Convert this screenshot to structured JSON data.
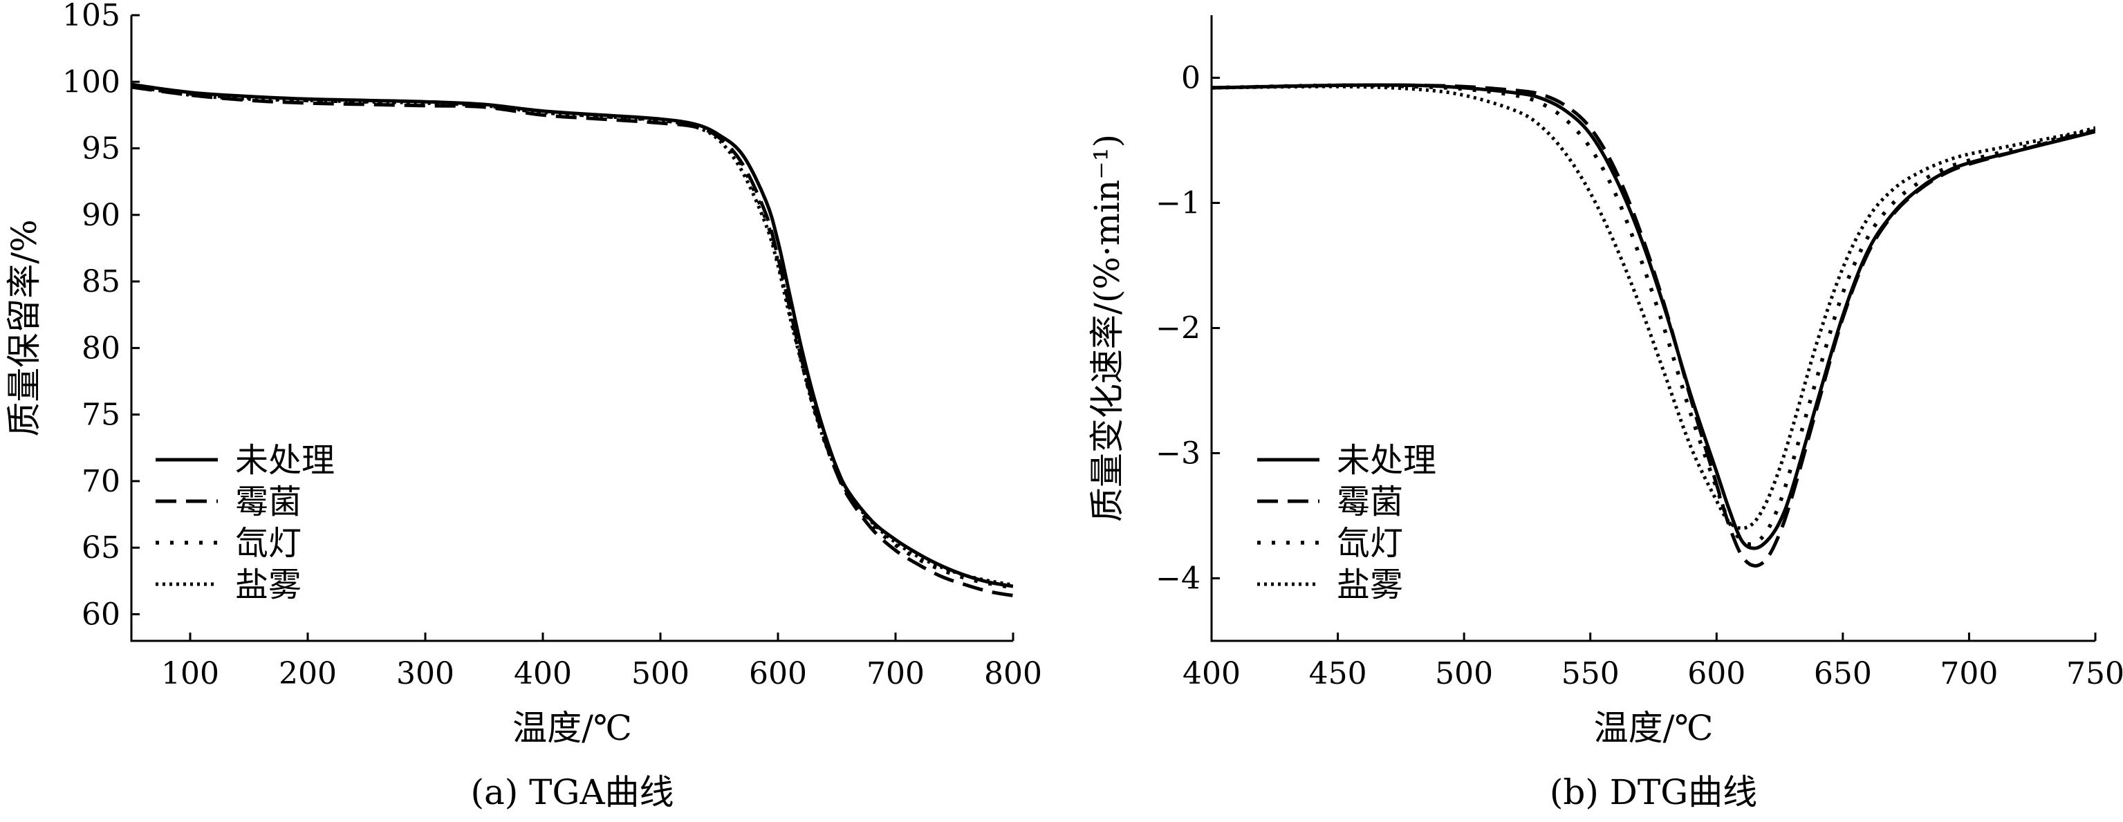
{
  "chart_data": [
    {
      "type": "line",
      "caption": "(a) TGA曲线",
      "xlabel": "温度/℃",
      "ylabel": "质量保留率/%",
      "xlim": [
        50,
        800
      ],
      "ylim": [
        58,
        105
      ],
      "xticks": [
        100,
        200,
        300,
        400,
        500,
        600,
        700,
        800
      ],
      "yticks": [
        60,
        65,
        70,
        75,
        80,
        85,
        90,
        95,
        100,
        105
      ],
      "grid": false,
      "legend": "bottom-left",
      "series": [
        {
          "name": "未处理",
          "style": "solid",
          "points": [
            [
              50,
              99.8
            ],
            [
              100,
              99.2
            ],
            [
              150,
              98.9
            ],
            [
              200,
              98.7
            ],
            [
              250,
              98.6
            ],
            [
              300,
              98.5
            ],
            [
              350,
              98.3
            ],
            [
              400,
              97.8
            ],
            [
              450,
              97.5
            ],
            [
              500,
              97.2
            ],
            [
              530,
              96.8
            ],
            [
              550,
              96.0
            ],
            [
              570,
              94.5
            ],
            [
              590,
              91.0
            ],
            [
              600,
              88.0
            ],
            [
              610,
              84.0
            ],
            [
              620,
              80.0
            ],
            [
              630,
              76.5
            ],
            [
              640,
              73.5
            ],
            [
              650,
              71.0
            ],
            [
              660,
              69.2
            ],
            [
              680,
              67.0
            ],
            [
              700,
              65.6
            ],
            [
              720,
              64.5
            ],
            [
              740,
              63.6
            ],
            [
              760,
              62.9
            ],
            [
              780,
              62.4
            ],
            [
              800,
              62.1
            ]
          ]
        },
        {
          "name": "霉菌",
          "style": "dash",
          "points": [
            [
              50,
              99.6
            ],
            [
              100,
              99.0
            ],
            [
              150,
              98.6
            ],
            [
              200,
              98.4
            ],
            [
              250,
              98.3
            ],
            [
              300,
              98.2
            ],
            [
              350,
              98.1
            ],
            [
              400,
              97.5
            ],
            [
              450,
              97.2
            ],
            [
              500,
              96.9
            ],
            [
              530,
              96.6
            ],
            [
              550,
              95.8
            ],
            [
              570,
              93.8
            ],
            [
              590,
              90.0
            ],
            [
              600,
              86.8
            ],
            [
              610,
              83.0
            ],
            [
              620,
              79.2
            ],
            [
              630,
              75.8
            ],
            [
              640,
              73.0
            ],
            [
              650,
              70.6
            ],
            [
              660,
              68.8
            ],
            [
              680,
              66.4
            ],
            [
              700,
              64.8
            ],
            [
              720,
              63.7
            ],
            [
              740,
              62.8
            ],
            [
              760,
              62.2
            ],
            [
              780,
              61.7
            ],
            [
              800,
              61.4
            ]
          ]
        },
        {
          "name": "氙灯",
          "style": "dot",
          "points": [
            [
              50,
              99.7
            ],
            [
              100,
              99.1
            ],
            [
              150,
              98.8
            ],
            [
              200,
              98.6
            ],
            [
              250,
              98.5
            ],
            [
              300,
              98.4
            ],
            [
              350,
              98.2
            ],
            [
              400,
              97.7
            ],
            [
              450,
              97.4
            ],
            [
              500,
              97.1
            ],
            [
              530,
              96.7
            ],
            [
              550,
              95.8
            ],
            [
              570,
              93.6
            ],
            [
              590,
              89.6
            ],
            [
              600,
              86.5
            ],
            [
              610,
              82.6
            ],
            [
              620,
              79.0
            ],
            [
              630,
              75.6
            ],
            [
              640,
              72.9
            ],
            [
              650,
              70.7
            ],
            [
              660,
              68.9
            ],
            [
              680,
              66.7
            ],
            [
              700,
              65.2
            ],
            [
              720,
              64.1
            ],
            [
              740,
              63.3
            ],
            [
              760,
              62.7
            ],
            [
              780,
              62.3
            ],
            [
              800,
              62.0
            ]
          ]
        },
        {
          "name": "盐雾",
          "style": "dense-dot",
          "points": [
            [
              50,
              99.7
            ],
            [
              100,
              99.0
            ],
            [
              150,
              98.7
            ],
            [
              200,
              98.6
            ],
            [
              250,
              98.5
            ],
            [
              300,
              98.4
            ],
            [
              350,
              98.2
            ],
            [
              400,
              97.7
            ],
            [
              450,
              97.4
            ],
            [
              500,
              97.1
            ],
            [
              530,
              96.6
            ],
            [
              550,
              95.6
            ],
            [
              570,
              93.2
            ],
            [
              590,
              89.2
            ],
            [
              600,
              86.2
            ],
            [
              610,
              82.4
            ],
            [
              620,
              78.9
            ],
            [
              630,
              75.6
            ],
            [
              640,
              72.9
            ],
            [
              650,
              70.8
            ],
            [
              660,
              69.0
            ],
            [
              680,
              66.9
            ],
            [
              700,
              65.4
            ],
            [
              720,
              64.3
            ],
            [
              740,
              63.5
            ],
            [
              760,
              62.9
            ],
            [
              780,
              62.5
            ],
            [
              800,
              62.2
            ]
          ]
        }
      ]
    },
    {
      "type": "line",
      "caption": "(b) DTG曲线",
      "xlabel": "温度/℃",
      "ylabel": "质量变化速率/(%·min⁻¹)",
      "xlim": [
        400,
        750
      ],
      "ylim": [
        -4.5,
        0.5
      ],
      "xticks": [
        400,
        450,
        500,
        550,
        600,
        650,
        700,
        750
      ],
      "yticks": [
        0,
        -1,
        -2,
        -3,
        -4
      ],
      "ytick_labels": [
        "0",
        "−1",
        "−2",
        "−3",
        "−4"
      ],
      "grid": false,
      "legend": "bottom-left",
      "series": [
        {
          "name": "未处理",
          "style": "solid",
          "points": [
            [
              400,
              -0.08
            ],
            [
              450,
              -0.06
            ],
            [
              480,
              -0.06
            ],
            [
              500,
              -0.08
            ],
            [
              520,
              -0.12
            ],
            [
              530,
              -0.16
            ],
            [
              540,
              -0.26
            ],
            [
              550,
              -0.45
            ],
            [
              560,
              -0.8
            ],
            [
              570,
              -1.28
            ],
            [
              580,
              -1.88
            ],
            [
              590,
              -2.55
            ],
            [
              600,
              -3.15
            ],
            [
              605,
              -3.45
            ],
            [
              610,
              -3.7
            ],
            [
              615,
              -3.76
            ],
            [
              620,
              -3.7
            ],
            [
              625,
              -3.55
            ],
            [
              630,
              -3.28
            ],
            [
              640,
              -2.58
            ],
            [
              650,
              -1.9
            ],
            [
              660,
              -1.38
            ],
            [
              670,
              -1.08
            ],
            [
              680,
              -0.89
            ],
            [
              690,
              -0.76
            ],
            [
              700,
              -0.68
            ],
            [
              720,
              -0.58
            ],
            [
              740,
              -0.48
            ],
            [
              750,
              -0.43
            ]
          ]
        },
        {
          "name": "霉菌",
          "style": "dash",
          "points": [
            [
              400,
              -0.08
            ],
            [
              450,
              -0.06
            ],
            [
              480,
              -0.06
            ],
            [
              500,
              -0.07
            ],
            [
              520,
              -0.1
            ],
            [
              530,
              -0.13
            ],
            [
              540,
              -0.22
            ],
            [
              550,
              -0.4
            ],
            [
              560,
              -0.74
            ],
            [
              570,
              -1.24
            ],
            [
              580,
              -1.86
            ],
            [
              590,
              -2.58
            ],
            [
              600,
              -3.25
            ],
            [
              605,
              -3.58
            ],
            [
              610,
              -3.82
            ],
            [
              615,
              -3.9
            ],
            [
              620,
              -3.84
            ],
            [
              625,
              -3.64
            ],
            [
              630,
              -3.34
            ],
            [
              640,
              -2.62
            ],
            [
              650,
              -1.92
            ],
            [
              660,
              -1.4
            ],
            [
              670,
              -1.09
            ],
            [
              680,
              -0.9
            ],
            [
              690,
              -0.77
            ],
            [
              700,
              -0.69
            ],
            [
              720,
              -0.58
            ],
            [
              740,
              -0.47
            ],
            [
              750,
              -0.42
            ]
          ]
        },
        {
          "name": "氙灯",
          "style": "dot",
          "points": [
            [
              400,
              -0.08
            ],
            [
              450,
              -0.06
            ],
            [
              480,
              -0.07
            ],
            [
              500,
              -0.09
            ],
            [
              520,
              -0.14
            ],
            [
              530,
              -0.2
            ],
            [
              540,
              -0.33
            ],
            [
              550,
              -0.56
            ],
            [
              560,
              -0.93
            ],
            [
              570,
              -1.45
            ],
            [
              580,
              -2.05
            ],
            [
              590,
              -2.7
            ],
            [
              600,
              -3.28
            ],
            [
              605,
              -3.55
            ],
            [
              610,
              -3.7
            ],
            [
              615,
              -3.72
            ],
            [
              620,
              -3.62
            ],
            [
              625,
              -3.4
            ],
            [
              630,
              -3.08
            ],
            [
              640,
              -2.38
            ],
            [
              650,
              -1.72
            ],
            [
              660,
              -1.27
            ],
            [
              670,
              -1.0
            ],
            [
              680,
              -0.84
            ],
            [
              690,
              -0.73
            ],
            [
              700,
              -0.66
            ],
            [
              720,
              -0.56
            ],
            [
              740,
              -0.46
            ],
            [
              750,
              -0.41
            ]
          ]
        },
        {
          "name": "盐雾",
          "style": "dense-dot",
          "points": [
            [
              400,
              -0.08
            ],
            [
              450,
              -0.07
            ],
            [
              480,
              -0.09
            ],
            [
              500,
              -0.14
            ],
            [
              520,
              -0.26
            ],
            [
              530,
              -0.38
            ],
            [
              540,
              -0.6
            ],
            [
              550,
              -0.92
            ],
            [
              560,
              -1.34
            ],
            [
              570,
              -1.84
            ],
            [
              580,
              -2.4
            ],
            [
              590,
              -2.96
            ],
            [
              600,
              -3.38
            ],
            [
              605,
              -3.55
            ],
            [
              610,
              -3.6
            ],
            [
              615,
              -3.55
            ],
            [
              620,
              -3.38
            ],
            [
              625,
              -3.12
            ],
            [
              630,
              -2.8
            ],
            [
              640,
              -2.1
            ],
            [
              650,
              -1.52
            ],
            [
              660,
              -1.12
            ],
            [
              670,
              -0.89
            ],
            [
              680,
              -0.76
            ],
            [
              690,
              -0.67
            ],
            [
              700,
              -0.61
            ],
            [
              720,
              -0.53
            ],
            [
              740,
              -0.45
            ],
            [
              750,
              -0.4
            ]
          ]
        }
      ]
    }
  ]
}
